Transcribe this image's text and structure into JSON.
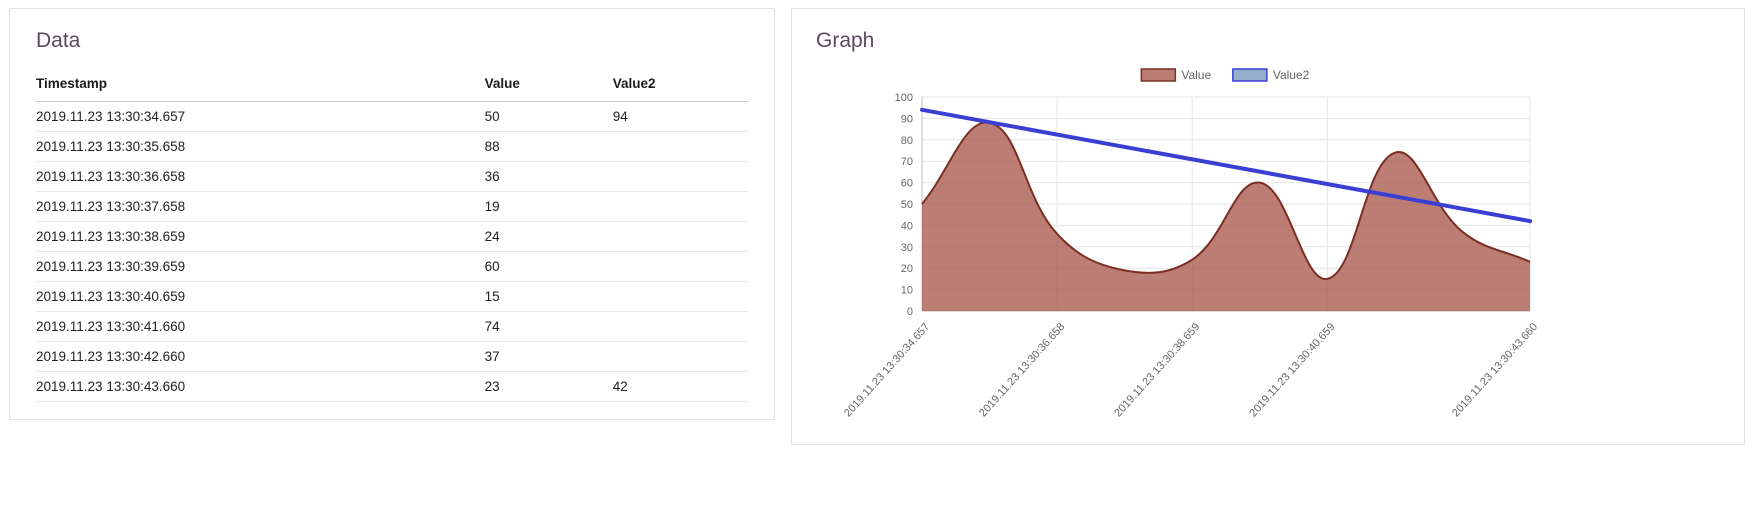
{
  "data_panel": {
    "title": "Data",
    "table": {
      "headers": [
        "Timestamp",
        "Value",
        "Value2"
      ],
      "rows": [
        [
          "2019.11.23 13:30:34.657",
          "50",
          "94"
        ],
        [
          "2019.11.23 13:30:35.658",
          "88",
          ""
        ],
        [
          "2019.11.23 13:30:36.658",
          "36",
          ""
        ],
        [
          "2019.11.23 13:30:37.658",
          "19",
          ""
        ],
        [
          "2019.11.23 13:30:38.659",
          "24",
          ""
        ],
        [
          "2019.11.23 13:30:39.659",
          "60",
          ""
        ],
        [
          "2019.11.23 13:30:40.659",
          "15",
          ""
        ],
        [
          "2019.11.23 13:30:41.660",
          "74",
          ""
        ],
        [
          "2019.11.23 13:30:42.660",
          "37",
          ""
        ],
        [
          "2019.11.23 13:30:43.660",
          "23",
          "42"
        ]
      ]
    }
  },
  "graph_panel": {
    "title": "Graph"
  },
  "chart_data": {
    "type": "area",
    "title": "",
    "xlabel": "",
    "ylabel": "",
    "x": [
      "2019.11.23 13:30:34.657",
      "2019.11.23 13:30:35.658",
      "2019.11.23 13:30:36.658",
      "2019.11.23 13:30:37.658",
      "2019.11.23 13:30:38.659",
      "2019.11.23 13:30:39.659",
      "2019.11.23 13:30:40.659",
      "2019.11.23 13:30:41.660",
      "2019.11.23 13:30:42.660",
      "2019.11.23 13:30:43.660"
    ],
    "series": [
      {
        "name": "Value",
        "type": "area",
        "smooth": true,
        "values": [
          50,
          88,
          36,
          19,
          24,
          60,
          15,
          74,
          37,
          23
        ],
        "fill_color": "rgba(166,82,71,0.75)",
        "line_color": "#7a2f23",
        "line_width": 2
      },
      {
        "name": "Value2",
        "type": "line",
        "smooth": false,
        "values": [
          94,
          null,
          null,
          null,
          null,
          null,
          null,
          null,
          null,
          42
        ],
        "span_gaps": true,
        "fill_color": "#93afcb",
        "line_color": "#3a3fd4",
        "line_width": 4
      }
    ],
    "ylim": [
      0,
      100
    ],
    "yticks": [
      0,
      10,
      20,
      30,
      40,
      50,
      60,
      70,
      80,
      90,
      100
    ],
    "xtick_indices": [
      0,
      2,
      4,
      6,
      9
    ],
    "grid": true,
    "grid_color": "#e6e6e6",
    "zero_line_color": "#bfbfbf",
    "tick_text_color": "#666666",
    "legend_position": "top"
  }
}
